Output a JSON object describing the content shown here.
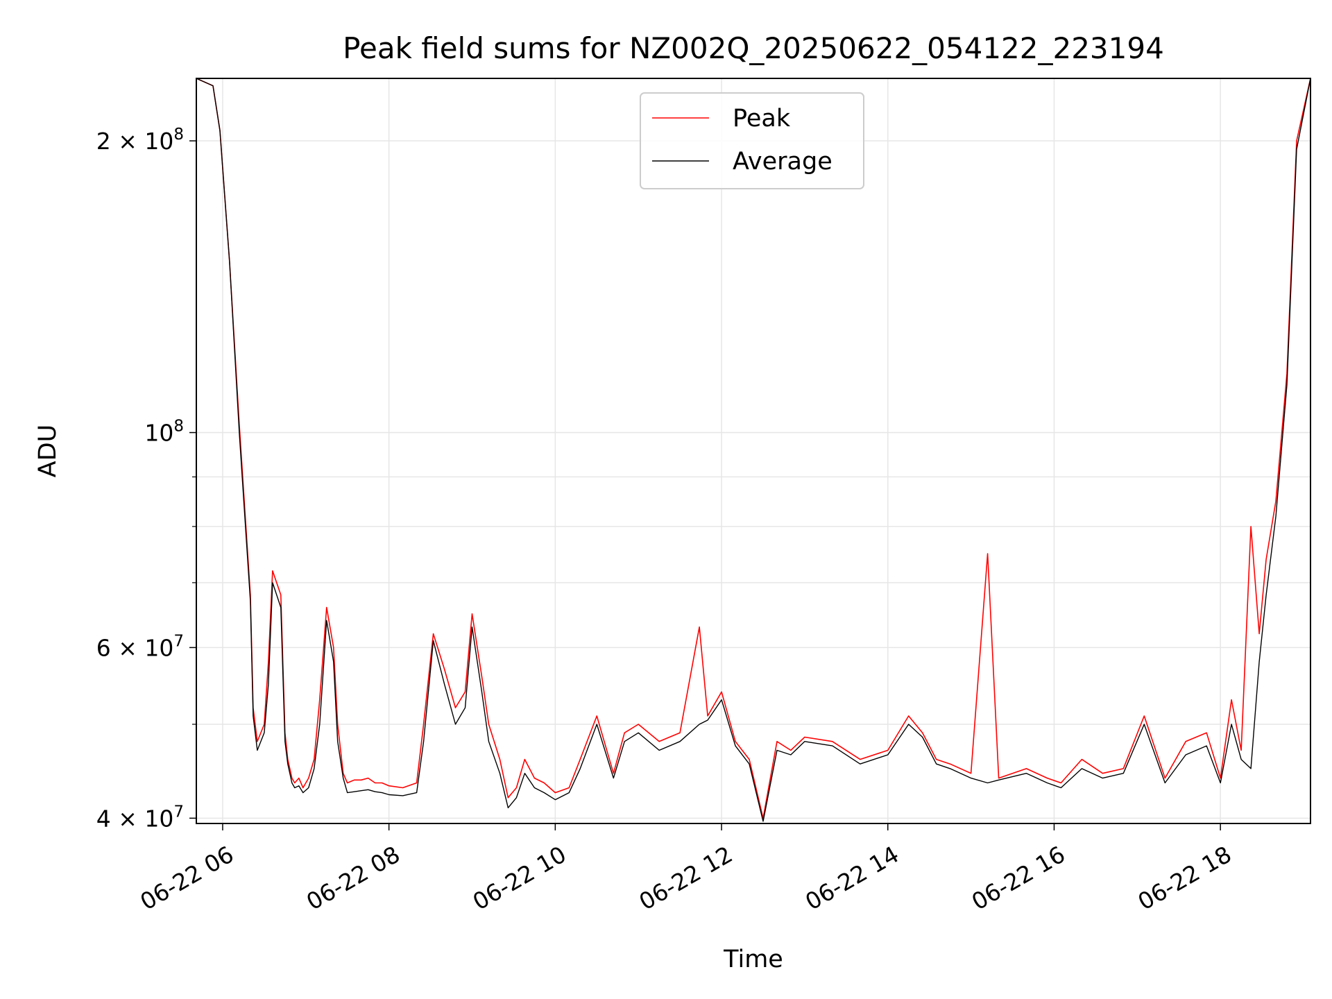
{
  "chart_data": {
    "type": "line",
    "title": "Peak field sums for NZ002Q_20250622_054122_223194",
    "xlabel": "Time",
    "ylabel": "ADU",
    "yscale": "log",
    "ylim": [
      39500000,
      232000000
    ],
    "xlim": [
      "2025-06-22 05:41",
      "2025-06-22 19:05"
    ],
    "grid": true,
    "legend_position": "top-center",
    "x_ticks": [
      {
        "value": "2025-06-22 06:00",
        "label": "06-22 06"
      },
      {
        "value": "2025-06-22 08:00",
        "label": "06-22 08"
      },
      {
        "value": "2025-06-22 10:00",
        "label": "06-22 10"
      },
      {
        "value": "2025-06-22 12:00",
        "label": "06-22 12"
      },
      {
        "value": "2025-06-22 14:00",
        "label": "06-22 14"
      },
      {
        "value": "2025-06-22 16:00",
        "label": "06-22 16"
      },
      {
        "value": "2025-06-22 18:00",
        "label": "06-22 18"
      }
    ],
    "y_ticks": [
      {
        "value": 40000000,
        "mantissa": "4",
        "exponent": "7"
      },
      {
        "value": 60000000,
        "mantissa": "6",
        "exponent": "7"
      },
      {
        "value": 100000000,
        "mantissa": "",
        "exponent": "8"
      },
      {
        "value": 200000000,
        "mantissa": "2",
        "exponent": "8"
      }
    ],
    "y_minor_ticks": [
      50000000,
      70000000,
      80000000,
      90000000
    ],
    "series": [
      {
        "name": "Peak",
        "color": "#ff0000",
        "x": [
          "2025-06-22 05:41",
          "2025-06-22 05:53",
          "2025-06-22 05:58",
          "2025-06-22 06:05",
          "2025-06-22 06:12",
          "2025-06-22 06:20",
          "2025-06-22 06:22",
          "2025-06-22 06:25",
          "2025-06-22 06:30",
          "2025-06-22 06:33",
          "2025-06-22 06:36",
          "2025-06-22 06:42",
          "2025-06-22 06:45",
          "2025-06-22 06:47",
          "2025-06-22 06:50",
          "2025-06-22 06:52",
          "2025-06-22 06:55",
          "2025-06-22 06:58",
          "2025-06-22 07:02",
          "2025-06-22 07:06",
          "2025-06-22 07:10",
          "2025-06-22 07:15",
          "2025-06-22 07:20",
          "2025-06-22 07:23",
          "2025-06-22 07:27",
          "2025-06-22 07:30",
          "2025-06-22 07:35",
          "2025-06-22 07:40",
          "2025-06-22 07:45",
          "2025-06-22 07:50",
          "2025-06-22 07:55",
          "2025-06-22 08:00",
          "2025-06-22 08:10",
          "2025-06-22 08:20",
          "2025-06-22 08:25",
          "2025-06-22 08:32",
          "2025-06-22 08:40",
          "2025-06-22 08:48",
          "2025-06-22 08:55",
          "2025-06-22 09:00",
          "2025-06-22 09:07",
          "2025-06-22 09:12",
          "2025-06-22 09:20",
          "2025-06-22 09:26",
          "2025-06-22 09:32",
          "2025-06-22 09:38",
          "2025-06-22 09:45",
          "2025-06-22 09:52",
          "2025-06-22 10:00",
          "2025-06-22 10:10",
          "2025-06-22 10:18",
          "2025-06-22 10:30",
          "2025-06-22 10:42",
          "2025-06-22 10:50",
          "2025-06-22 11:00",
          "2025-06-22 11:15",
          "2025-06-22 11:30",
          "2025-06-22 11:44",
          "2025-06-22 11:50",
          "2025-06-22 12:00",
          "2025-06-22 12:10",
          "2025-06-22 12:20",
          "2025-06-22 12:30",
          "2025-06-22 12:40",
          "2025-06-22 12:50",
          "2025-06-22 13:00",
          "2025-06-22 13:20",
          "2025-06-22 13:40",
          "2025-06-22 14:00",
          "2025-06-22 14:15",
          "2025-06-22 14:25",
          "2025-06-22 14:35",
          "2025-06-22 14:45",
          "2025-06-22 15:00",
          "2025-06-22 15:12",
          "2025-06-22 15:20",
          "2025-06-22 15:40",
          "2025-06-22 15:55",
          "2025-06-22 16:05",
          "2025-06-22 16:20",
          "2025-06-22 16:35",
          "2025-06-22 16:50",
          "2025-06-22 17:05",
          "2025-06-22 17:20",
          "2025-06-22 17:35",
          "2025-06-22 17:50",
          "2025-06-22 18:00",
          "2025-06-22 18:08",
          "2025-06-22 18:15",
          "2025-06-22 18:22",
          "2025-06-22 18:28",
          "2025-06-22 18:33",
          "2025-06-22 18:40",
          "2025-06-22 18:48",
          "2025-06-22 18:55",
          "2025-06-22 19:05"
        ],
        "values": [
          232000000,
          228000000,
          205000000,
          150000000,
          102000000,
          68000000,
          52000000,
          48000000,
          50000000,
          58000000,
          72000000,
          68000000,
          49000000,
          46000000,
          44000000,
          43500000,
          44000000,
          43000000,
          44000000,
          46000000,
          53000000,
          66000000,
          60000000,
          50000000,
          44500000,
          43500000,
          43800000,
          43800000,
          44000000,
          43500000,
          43500000,
          43200000,
          43000000,
          43500000,
          50000000,
          62000000,
          57000000,
          52000000,
          54000000,
          65000000,
          56000000,
          50000000,
          46000000,
          42000000,
          43000000,
          46000000,
          44000000,
          43500000,
          42500000,
          43000000,
          46000000,
          51000000,
          44500000,
          49000000,
          50000000,
          48000000,
          49000000,
          63000000,
          51000000,
          54000000,
          48000000,
          46000000,
          40000000,
          48000000,
          47000000,
          48500000,
          48000000,
          46000000,
          47000000,
          51000000,
          49000000,
          46000000,
          45500000,
          44500000,
          75000000,
          44000000,
          45000000,
          44000000,
          43500000,
          46000000,
          44500000,
          45000000,
          51000000,
          44000000,
          48000000,
          49000000,
          44000000,
          53000000,
          47000000,
          80000000,
          62000000,
          74000000,
          85000000,
          115000000,
          200000000,
          232000000
        ]
      },
      {
        "name": "Average",
        "color": "#000000",
        "x": [
          "2025-06-22 05:41",
          "2025-06-22 05:53",
          "2025-06-22 05:58",
          "2025-06-22 06:05",
          "2025-06-22 06:12",
          "2025-06-22 06:20",
          "2025-06-22 06:22",
          "2025-06-22 06:25",
          "2025-06-22 06:30",
          "2025-06-22 06:33",
          "2025-06-22 06:36",
          "2025-06-22 06:42",
          "2025-06-22 06:45",
          "2025-06-22 06:47",
          "2025-06-22 06:50",
          "2025-06-22 06:52",
          "2025-06-22 06:55",
          "2025-06-22 06:58",
          "2025-06-22 07:02",
          "2025-06-22 07:06",
          "2025-06-22 07:10",
          "2025-06-22 07:15",
          "2025-06-22 07:20",
          "2025-06-22 07:23",
          "2025-06-22 07:27",
          "2025-06-22 07:30",
          "2025-06-22 07:35",
          "2025-06-22 07:40",
          "2025-06-22 07:45",
          "2025-06-22 07:50",
          "2025-06-22 07:55",
          "2025-06-22 08:00",
          "2025-06-22 08:10",
          "2025-06-22 08:20",
          "2025-06-22 08:25",
          "2025-06-22 08:32",
          "2025-06-22 08:40",
          "2025-06-22 08:48",
          "2025-06-22 08:55",
          "2025-06-22 09:00",
          "2025-06-22 09:07",
          "2025-06-22 09:12",
          "2025-06-22 09:20",
          "2025-06-22 09:26",
          "2025-06-22 09:32",
          "2025-06-22 09:38",
          "2025-06-22 09:45",
          "2025-06-22 09:52",
          "2025-06-22 10:00",
          "2025-06-22 10:10",
          "2025-06-22 10:18",
          "2025-06-22 10:30",
          "2025-06-22 10:42",
          "2025-06-22 10:50",
          "2025-06-22 11:00",
          "2025-06-22 11:15",
          "2025-06-22 11:30",
          "2025-06-22 11:44",
          "2025-06-22 11:50",
          "2025-06-22 12:00",
          "2025-06-22 12:10",
          "2025-06-22 12:20",
          "2025-06-22 12:30",
          "2025-06-22 12:40",
          "2025-06-22 12:50",
          "2025-06-22 13:00",
          "2025-06-22 13:20",
          "2025-06-22 13:40",
          "2025-06-22 14:00",
          "2025-06-22 14:15",
          "2025-06-22 14:25",
          "2025-06-22 14:35",
          "2025-06-22 14:45",
          "2025-06-22 15:00",
          "2025-06-22 15:12",
          "2025-06-22 15:20",
          "2025-06-22 15:40",
          "2025-06-22 15:55",
          "2025-06-22 16:05",
          "2025-06-22 16:20",
          "2025-06-22 16:35",
          "2025-06-22 16:50",
          "2025-06-22 17:05",
          "2025-06-22 17:20",
          "2025-06-22 17:35",
          "2025-06-22 17:50",
          "2025-06-22 18:00",
          "2025-06-22 18:08",
          "2025-06-22 18:15",
          "2025-06-22 18:22",
          "2025-06-22 18:28",
          "2025-06-22 18:33",
          "2025-06-22 18:40",
          "2025-06-22 18:48",
          "2025-06-22 18:55",
          "2025-06-22 19:05"
        ],
        "values": [
          232000000,
          228000000,
          205000000,
          150000000,
          100000000,
          67000000,
          51000000,
          47000000,
          49000000,
          55000000,
          70000000,
          66000000,
          48000000,
          45500000,
          43500000,
          43000000,
          43200000,
          42500000,
          43000000,
          45000000,
          50000000,
          64000000,
          58000000,
          48000000,
          44000000,
          42500000,
          42600000,
          42700000,
          42800000,
          42600000,
          42500000,
          42300000,
          42200000,
          42500000,
          48000000,
          61000000,
          55000000,
          50000000,
          52000000,
          63000000,
          54000000,
          48000000,
          44500000,
          41000000,
          42000000,
          44500000,
          43000000,
          42500000,
          41800000,
          42500000,
          45000000,
          50000000,
          44000000,
          48000000,
          49000000,
          47000000,
          48000000,
          50000000,
          50500000,
          53000000,
          47500000,
          45500000,
          39700000,
          47000000,
          46500000,
          48000000,
          47500000,
          45500000,
          46500000,
          50000000,
          48500000,
          45500000,
          45000000,
          44000000,
          43500000,
          43800000,
          44500000,
          43500000,
          43000000,
          45000000,
          44000000,
          44500000,
          50000000,
          43500000,
          46500000,
          47500000,
          43500000,
          50000000,
          46000000,
          45000000,
          58000000,
          68000000,
          82000000,
          112000000,
          196000000,
          232000000
        ]
      }
    ]
  }
}
